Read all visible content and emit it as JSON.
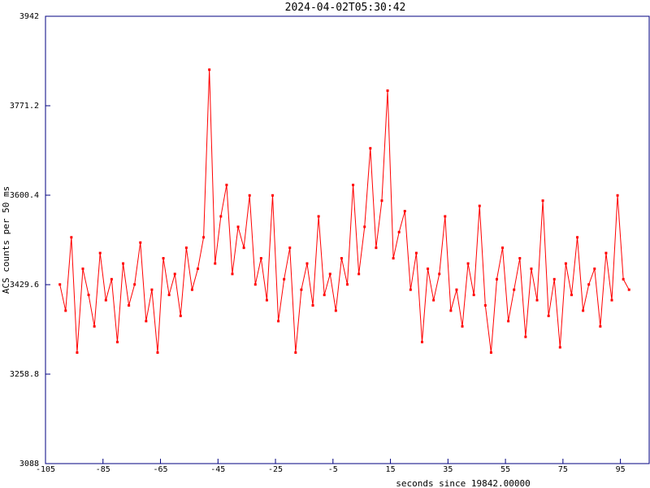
{
  "chart_data": {
    "type": "line",
    "title": "2024-04-02T05:30:42",
    "x_label": "seconds since 19842.00000",
    "y_label": "ACS counts per 50 ms",
    "x": [
      -100,
      -98,
      -96,
      -94,
      -92,
      -90,
      -88,
      -86,
      -84,
      -82,
      -80,
      -78,
      -76,
      -74,
      -72,
      -70,
      -68,
      -66,
      -64,
      -62,
      -60,
      -58,
      -56,
      -54,
      -52,
      -50,
      -48,
      -46,
      -44,
      -42,
      -40,
      -38,
      -36,
      -34,
      -32,
      -30,
      -28,
      -26,
      -24,
      -22,
      -20,
      -18,
      -16,
      -14,
      -12,
      -10,
      -8,
      -6,
      -4,
      -2,
      0,
      2,
      4,
      6,
      8,
      10,
      12,
      14,
      16,
      18,
      20,
      22,
      24,
      26,
      28,
      30,
      32,
      34,
      36,
      38,
      40,
      42,
      44,
      46,
      48,
      50,
      52,
      54,
      56,
      58,
      60,
      62,
      64,
      66,
      68,
      70,
      72,
      74,
      76,
      78,
      80,
      82,
      84,
      86,
      88,
      90,
      92,
      94,
      96,
      98
    ],
    "series": [
      {
        "name": "ACS counts",
        "color": "#ff0000",
        "values": [
          3430,
          3380,
          3520,
          3300,
          3460,
          3410,
          3350,
          3490,
          3400,
          3440,
          3320,
          3470,
          3390,
          3430,
          3510,
          3360,
          3420,
          3300,
          3480,
          3410,
          3450,
          3370,
          3500,
          3420,
          3460,
          3520,
          3840,
          3470,
          3560,
          3620,
          3450,
          3540,
          3500,
          3600,
          3430,
          3480,
          3400,
          3600,
          3360,
          3440,
          3500,
          3300,
          3420,
          3470,
          3390,
          3560,
          3410,
          3450,
          3380,
          3480,
          3430,
          3620,
          3450,
          3540,
          3690,
          3500,
          3590,
          3800,
          3480,
          3530,
          3570,
          3420,
          3490,
          3320,
          3460,
          3400,
          3450,
          3560,
          3380,
          3420,
          3350,
          3470,
          3410,
          3580,
          3390,
          3300,
          3440,
          3500,
          3360,
          3420,
          3480,
          3330,
          3460,
          3400,
          3590,
          3370,
          3440,
          3310,
          3470,
          3410,
          3520,
          3380,
          3430,
          3460,
          3350,
          3490,
          3400,
          3600,
          3440,
          3420
        ]
      }
    ],
    "xlim": [
      -105,
      105
    ],
    "xticks": [
      -105,
      -85,
      -65,
      -45,
      -25,
      -5,
      15,
      35,
      55,
      75,
      95
    ],
    "ylim": [
      3088,
      3942
    ],
    "yticks": [
      3088,
      3258.8,
      3429.6,
      3600.4,
      3771.2,
      3942
    ]
  }
}
